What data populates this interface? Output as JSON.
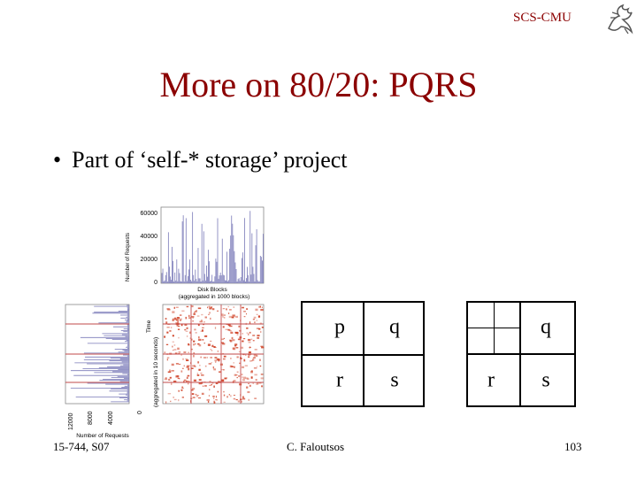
{
  "header": {
    "org": "SCS-CMU",
    "logo_icon": "griffin-logo-icon"
  },
  "slide": {
    "title": "More on 80/20: PQRS",
    "bullet": "Part of ‘self-* storage’ project",
    "bullet_marker": "•"
  },
  "figure": {
    "top_axis_ticks": [
      "60000",
      "40000",
      "20000",
      "0"
    ],
    "top_ylabel": "Number of Requests",
    "top_xlabel": "Disk Blocks",
    "top_xlabel_sub": "(aggregated in 1000 blocks)",
    "side_ylabel": "Time",
    "side_ylabel_sub": "(aggregated in 10 seconds)",
    "side_axis_ticks": [
      "12000",
      "8000",
      "4000",
      "0"
    ],
    "side_xlabel": "Number of Requests",
    "colors": {
      "plot": "#7a7ab8",
      "heat": "#d0452a",
      "line": "#c24a4a"
    }
  },
  "grid_left": {
    "p": "p",
    "q": "q",
    "r": "r",
    "s": "s"
  },
  "grid_right": {
    "q": "q",
    "r": "r",
    "s": "s"
  },
  "footer": {
    "course": "15-744, S07",
    "author": "C. Faloutsos",
    "page": "103"
  }
}
